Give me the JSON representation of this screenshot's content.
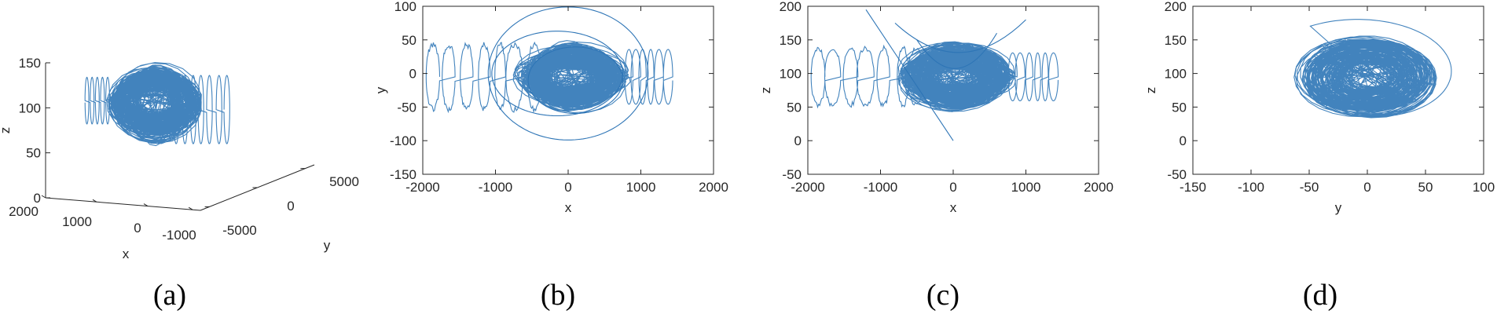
{
  "chart_data": [
    {
      "panel": "(a)",
      "type": "line",
      "view": "3d",
      "xlabel": "x",
      "ylabel": "y",
      "zlabel": "z",
      "xlim": [
        -1500,
        2000
      ],
      "ylim": [
        -5000,
        5000
      ],
      "zlim": [
        0,
        150
      ],
      "xticks": [
        2000,
        1000,
        0,
        -1000
      ],
      "yticks": [
        -5000,
        0,
        5000
      ],
      "zticks": [
        0,
        50,
        100,
        150
      ],
      "grid": false,
      "series_color": "#2e75b6"
    },
    {
      "panel": "(b)",
      "type": "line",
      "xlabel": "x",
      "ylabel": "y",
      "xlim": [
        -2000,
        2000
      ],
      "ylim": [
        -150,
        100
      ],
      "xticks": [
        -2000,
        -1000,
        0,
        1000,
        2000
      ],
      "yticks": [
        -150,
        -100,
        -50,
        0,
        50,
        100
      ],
      "grid": false,
      "series_color": "#2e75b6"
    },
    {
      "panel": "(c)",
      "type": "line",
      "xlabel": "x",
      "ylabel": "z",
      "xlim": [
        -2000,
        2000
      ],
      "ylim": [
        -50,
        200
      ],
      "xticks": [
        -2000,
        -1000,
        0,
        1000,
        2000
      ],
      "yticks": [
        -50,
        0,
        50,
        100,
        150,
        200
      ],
      "grid": false,
      "series_color": "#2e75b6"
    },
    {
      "panel": "(d)",
      "type": "line",
      "xlabel": "y",
      "ylabel": "z",
      "xlim": [
        -150,
        100
      ],
      "ylim": [
        -50,
        200
      ],
      "xticks": [
        -150,
        -100,
        -50,
        0,
        50,
        100
      ],
      "yticks": [
        -50,
        0,
        50,
        100,
        150,
        200
      ],
      "grid": false,
      "series_color": "#2e75b6"
    }
  ]
}
